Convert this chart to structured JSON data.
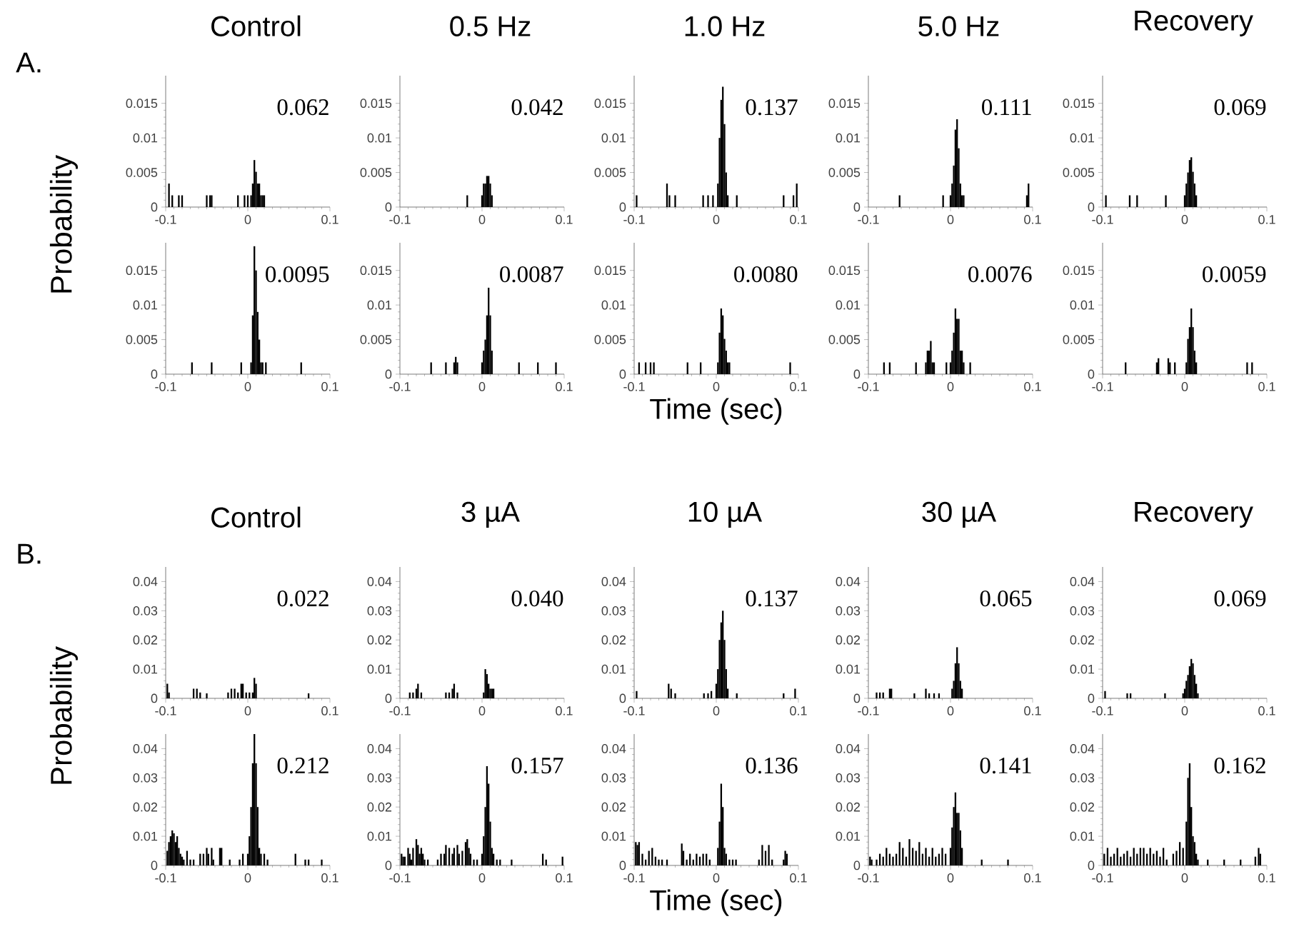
{
  "chart_data": [
    {
      "type": "bar",
      "title": "Control",
      "ylabel": "Probability",
      "annotations": [
        "A.",
        "0.062"
      ],
      "color": "#000000",
      "xlim": [
        -0.1,
        0.1
      ],
      "ylim": [
        0,
        0.019
      ],
      "xticks": [
        -0.1,
        0,
        0.1
      ],
      "yticks": [
        0,
        0.005,
        0.01,
        0.015
      ],
      "x": [
        -0.096,
        -0.092,
        -0.084,
        -0.08,
        -0.05,
        -0.046,
        -0.044,
        -0.012,
        -0.004,
        0,
        0.004,
        0.006,
        0.008,
        0.01,
        0.012,
        0.014,
        0.016,
        0.018,
        0.02
      ],
      "values": [
        0.0034,
        0.0017,
        0.0017,
        0.0017,
        0.0017,
        0.0017,
        0.0017,
        0.0017,
        0.0017,
        0.0017,
        0.0017,
        0.0034,
        0.0068,
        0.0051,
        0.0034,
        0.0034,
        0.0017,
        0.0017,
        0.0017
      ]
    },
    {
      "type": "bar",
      "title": "0.5 Hz",
      "annotations": [
        "0.042"
      ],
      "color": "#000000",
      "xlim": [
        -0.1,
        0.1
      ],
      "ylim": [
        0,
        0.019
      ],
      "xticks": [
        -0.1,
        0,
        0.1
      ],
      "yticks": [
        0,
        0.005,
        0.01,
        0.015
      ],
      "x": [
        -0.018,
        0,
        0.002,
        0.004,
        0.006,
        0.008,
        0.01,
        0.012
      ],
      "values": [
        0.0017,
        0.0017,
        0.0034,
        0.0034,
        0.0045,
        0.0045,
        0.0034,
        0.0017
      ]
    },
    {
      "type": "bar",
      "title": "1.0 Hz",
      "annotations": [
        "0.137"
      ],
      "color": "#000000",
      "xlim": [
        -0.1,
        0.1
      ],
      "ylim": [
        0,
        0.019
      ],
      "xticks": [
        -0.1,
        0,
        0.1
      ],
      "yticks": [
        0,
        0.005,
        0.01,
        0.015
      ],
      "x": [
        -0.097,
        -0.06,
        -0.057,
        -0.05,
        -0.016,
        -0.01,
        -0.004,
        0.002,
        0.004,
        0.006,
        0.008,
        0.01,
        0.012,
        0.014,
        0.025,
        0.082,
        0.094,
        0.098
      ],
      "values": [
        0.0017,
        0.0034,
        0.0017,
        0.0017,
        0.0017,
        0.0017,
        0.0017,
        0.0034,
        0.01,
        0.0155,
        0.0174,
        0.012,
        0.005,
        0.0017,
        0.0017,
        0.0017,
        0.0017,
        0.0034
      ]
    },
    {
      "type": "bar",
      "title": "5.0 Hz",
      "annotations": [
        "0.111"
      ],
      "color": "#000000",
      "xlim": [
        -0.1,
        0.1
      ],
      "ylim": [
        0,
        0.019
      ],
      "xticks": [
        -0.1,
        0,
        0.1
      ],
      "yticks": [
        0,
        0.005,
        0.01,
        0.015
      ],
      "x": [
        -0.062,
        -0.009,
        0,
        0.002,
        0.004,
        0.006,
        0.008,
        0.01,
        0.012,
        0.014,
        0.016,
        0.093,
        0.095
      ],
      "values": [
        0.0017,
        0.0017,
        0.0017,
        0.0034,
        0.006,
        0.0112,
        0.0127,
        0.0085,
        0.0034,
        0.0017,
        0.0017,
        0.0017,
        0.0034
      ]
    },
    {
      "type": "bar",
      "title": "Recovery",
      "annotations": [
        "0.069"
      ],
      "color": "#000000",
      "xlim": [
        -0.1,
        0.1
      ],
      "ylim": [
        0,
        0.019
      ],
      "xticks": [
        -0.1,
        0,
        0.1
      ],
      "yticks": [
        0,
        0.005,
        0.01,
        0.015
      ],
      "x": [
        -0.096,
        -0.067,
        -0.058,
        -0.023,
        0,
        0.002,
        0.004,
        0.006,
        0.008,
        0.01,
        0.012,
        0.014
      ],
      "values": [
        0.0017,
        0.0017,
        0.0017,
        0.0017,
        0.0017,
        0.0034,
        0.005,
        0.0068,
        0.0072,
        0.0051,
        0.0034,
        0.0017
      ]
    },
    {
      "type": "bar",
      "annotations": [
        "0.0095"
      ],
      "color": "#000000",
      "xlim": [
        -0.1,
        0.1
      ],
      "ylim": [
        0,
        0.019
      ],
      "xticks": [
        -0.1,
        0,
        0.1
      ],
      "yticks": [
        0,
        0.005,
        0.01,
        0.015
      ],
      "x": [
        -0.068,
        -0.044,
        -0.008,
        0.004,
        0.006,
        0.008,
        0.01,
        0.012,
        0.014,
        0.016,
        0.018,
        0.022,
        0.065
      ],
      "values": [
        0.0017,
        0.0017,
        0.0017,
        0.0017,
        0.0085,
        0.0185,
        0.015,
        0.009,
        0.005,
        0.0017,
        0.0017,
        0.0017,
        0.0017
      ]
    },
    {
      "type": "bar",
      "annotations": [
        "0.0087"
      ],
      "color": "#000000",
      "xlim": [
        -0.1,
        0.1
      ],
      "ylim": [
        0,
        0.019
      ],
      "xticks": [
        -0.1,
        0,
        0.1
      ],
      "yticks": [
        0,
        0.005,
        0.01,
        0.015
      ],
      "x": [
        -0.062,
        -0.044,
        -0.034,
        -0.032,
        -0.03,
        0,
        0.002,
        0.004,
        0.006,
        0.008,
        0.01,
        0.012,
        0.045,
        0.068,
        0.09
      ],
      "values": [
        0.0017,
        0.0017,
        0.0017,
        0.0025,
        0.0017,
        0.0017,
        0.0034,
        0.005,
        0.0085,
        0.0125,
        0.0085,
        0.0034,
        0.0017,
        0.0017,
        0.0017
      ]
    },
    {
      "type": "bar",
      "xlabel": "Time (sec)",
      "annotations": [
        "0.0080"
      ],
      "color": "#000000",
      "xlim": [
        -0.1,
        0.1
      ],
      "ylim": [
        0,
        0.019
      ],
      "xticks": [
        -0.1,
        0,
        0.1
      ],
      "yticks": [
        0,
        0.005,
        0.01,
        0.015
      ],
      "x": [
        -0.094,
        -0.086,
        -0.08,
        -0.076,
        -0.035,
        -0.019,
        0.002,
        0.004,
        0.006,
        0.008,
        0.01,
        0.012,
        0.014,
        0.016,
        0.09
      ],
      "values": [
        0.0017,
        0.0017,
        0.0017,
        0.0017,
        0.0017,
        0.0017,
        0.0017,
        0.006,
        0.0095,
        0.0085,
        0.0051,
        0.0034,
        0.0017,
        0.0017,
        0.0017
      ]
    },
    {
      "type": "bar",
      "annotations": [
        "0.0076"
      ],
      "color": "#000000",
      "xlim": [
        -0.1,
        0.1
      ],
      "ylim": [
        0,
        0.019
      ],
      "xticks": [
        -0.1,
        0,
        0.1
      ],
      "yticks": [
        0,
        0.005,
        0.01,
        0.015
      ],
      "x": [
        -0.081,
        -0.074,
        -0.042,
        -0.03,
        -0.028,
        -0.026,
        -0.024,
        -0.022,
        -0.02,
        -0.005,
        0,
        0.002,
        0.004,
        0.006,
        0.008,
        0.01,
        0.012,
        0.014,
        0.016,
        0.024
      ],
      "values": [
        0.0017,
        0.0017,
        0.0017,
        0.0017,
        0.0034,
        0.0034,
        0.0048,
        0.0017,
        0.0017,
        0.0017,
        0.0017,
        0.0034,
        0.006,
        0.0095,
        0.008,
        0.008,
        0.0034,
        0.0034,
        0.0017,
        0.0017
      ]
    },
    {
      "type": "bar",
      "annotations": [
        "0.0059"
      ],
      "color": "#000000",
      "xlim": [
        -0.1,
        0.1
      ],
      "ylim": [
        0,
        0.019
      ],
      "xticks": [
        -0.1,
        0,
        0.1
      ],
      "yticks": [
        0,
        0.005,
        0.01,
        0.015
      ],
      "x": [
        -0.072,
        -0.034,
        -0.032,
        -0.02,
        -0.018,
        -0.012,
        0.002,
        0.004,
        0.006,
        0.008,
        0.01,
        0.012,
        0.014,
        0.076,
        0.082
      ],
      "values": [
        0.0017,
        0.0017,
        0.0023,
        0.0023,
        0.0017,
        0.0017,
        0.0017,
        0.0051,
        0.0068,
        0.0095,
        0.0068,
        0.0034,
        0.0017,
        0.0017,
        0.0017
      ]
    },
    {
      "type": "bar",
      "title": "Control",
      "ylabel": "Probability",
      "annotations": [
        "B.",
        "0.022"
      ],
      "color": "#000000",
      "xlim": [
        -0.1,
        0.1
      ],
      "ylim": [
        0,
        0.045
      ],
      "xticks": [
        -0.1,
        0,
        0.1
      ],
      "yticks": [
        0,
        0.01,
        0.02,
        0.03,
        0.04
      ],
      "x": [
        -0.098,
        -0.096,
        -0.066,
        -0.062,
        -0.058,
        -0.05,
        -0.024,
        -0.02,
        -0.016,
        -0.012,
        -0.008,
        -0.006,
        -0.002,
        0.002,
        0.006,
        0.008,
        0.01,
        0.074
      ],
      "values": [
        0.005,
        0.002,
        0.0033,
        0.0033,
        0.002,
        0.0017,
        0.002,
        0.0033,
        0.0033,
        0.002,
        0.005,
        0.005,
        0.002,
        0.002,
        0.002,
        0.007,
        0.005,
        0.0017
      ]
    },
    {
      "type": "bar",
      "title": "3 µA",
      "annotations": [
        "0.040"
      ],
      "color": "#000000",
      "xlim": [
        -0.1,
        0.1
      ],
      "ylim": [
        0,
        0.045
      ],
      "xticks": [
        -0.1,
        0,
        0.1
      ],
      "yticks": [
        0,
        0.01,
        0.02,
        0.03,
        0.04
      ],
      "x": [
        -0.088,
        -0.084,
        -0.08,
        -0.078,
        -0.074,
        -0.044,
        -0.04,
        -0.036,
        -0.034,
        -0.03,
        0.002,
        0.004,
        0.006,
        0.008,
        0.01,
        0.012,
        0.014
      ],
      "values": [
        0.002,
        0.002,
        0.0033,
        0.005,
        0.002,
        0.002,
        0.002,
        0.0033,
        0.005,
        0.002,
        0.002,
        0.01,
        0.0083,
        0.005,
        0.0033,
        0.0033,
        0.0033
      ]
    },
    {
      "type": "bar",
      "title": "10 µA",
      "annotations": [
        "0.137"
      ],
      "color": "#000000",
      "xlim": [
        -0.1,
        0.1
      ],
      "ylim": [
        0,
        0.045
      ],
      "xticks": [
        -0.1,
        0,
        0.1
      ],
      "yticks": [
        0,
        0.01,
        0.02,
        0.03,
        0.04
      ],
      "x": [
        -0.097,
        -0.058,
        -0.055,
        -0.05,
        -0.015,
        -0.01,
        -0.006,
        0,
        0.002,
        0.004,
        0.006,
        0.008,
        0.01,
        0.012,
        0.014,
        0.025,
        0.082,
        0.096
      ],
      "values": [
        0.0025,
        0.005,
        0.0033,
        0.0017,
        0.0017,
        0.0017,
        0.0025,
        0.005,
        0.01,
        0.02,
        0.026,
        0.03,
        0.02,
        0.01,
        0.0033,
        0.0017,
        0.0017,
        0.0033
      ]
    },
    {
      "type": "bar",
      "title": "30 µA",
      "annotations": [
        "0.065"
      ],
      "color": "#000000",
      "xlim": [
        -0.1,
        0.1
      ],
      "ylim": [
        0,
        0.045
      ],
      "xticks": [
        -0.1,
        0,
        0.1
      ],
      "yticks": [
        0,
        0.01,
        0.02,
        0.03,
        0.04
      ],
      "x": [
        -0.09,
        -0.086,
        -0.082,
        -0.074,
        -0.072,
        -0.044,
        -0.03,
        -0.026,
        -0.02,
        -0.014,
        0.002,
        0.004,
        0.006,
        0.008,
        0.01,
        0.012,
        0.014
      ],
      "values": [
        0.002,
        0.002,
        0.002,
        0.0033,
        0.0033,
        0.0017,
        0.0033,
        0.0017,
        0.0017,
        0.0017,
        0.0033,
        0.006,
        0.012,
        0.0175,
        0.012,
        0.006,
        0.0033
      ]
    },
    {
      "type": "bar",
      "title": "Recovery",
      "annotations": [
        "0.069"
      ],
      "color": "#000000",
      "xlim": [
        -0.1,
        0.1
      ],
      "ylim": [
        0,
        0.045
      ],
      "xticks": [
        -0.1,
        0,
        0.1
      ],
      "yticks": [
        0,
        0.01,
        0.02,
        0.03,
        0.04
      ],
      "x": [
        -0.097,
        -0.07,
        -0.066,
        -0.024,
        -0.002,
        0,
        0.002,
        0.004,
        0.006,
        0.008,
        0.01,
        0.012,
        0.014,
        0.016
      ],
      "values": [
        0.0025,
        0.0017,
        0.0017,
        0.0017,
        0.0017,
        0.0033,
        0.006,
        0.008,
        0.011,
        0.0135,
        0.012,
        0.008,
        0.005,
        0.0017
      ]
    },
    {
      "type": "bar",
      "annotations": [
        "0.212"
      ],
      "color": "#000000",
      "xlim": [
        -0.1,
        0.1
      ],
      "ylim": [
        0,
        0.045
      ],
      "xticks": [
        -0.1,
        0,
        0.1
      ],
      "yticks": [
        0,
        0.01,
        0.02,
        0.03,
        0.04
      ],
      "x": [
        -0.098,
        -0.096,
        -0.094,
        -0.092,
        -0.09,
        -0.088,
        -0.086,
        -0.084,
        -0.082,
        -0.08,
        -0.078,
        -0.074,
        -0.07,
        -0.066,
        -0.058,
        -0.054,
        -0.05,
        -0.048,
        -0.044,
        -0.042,
        -0.034,
        -0.032,
        -0.022,
        -0.01,
        -0.006,
        0,
        0.002,
        0.004,
        0.006,
        0.008,
        0.01,
        0.012,
        0.014,
        0.016,
        0.02,
        0.024,
        0.058,
        0.07,
        0.074,
        0.09
      ],
      "values": [
        0.005,
        0.008,
        0.01,
        0.012,
        0.011,
        0.008,
        0.01,
        0.006,
        0.004,
        0.003,
        0.002,
        0.005,
        0.002,
        0.002,
        0.004,
        0.004,
        0.006,
        0.004,
        0.006,
        0.002,
        0.006,
        0.006,
        0.002,
        0.002,
        0.004,
        0.004,
        0.01,
        0.02,
        0.035,
        0.045,
        0.035,
        0.02,
        0.006,
        0.004,
        0.004,
        0.002,
        0.004,
        0.002,
        0.002,
        0.002
      ]
    },
    {
      "type": "bar",
      "annotations": [
        "0.157"
      ],
      "color": "#000000",
      "xlim": [
        -0.1,
        0.1
      ],
      "ylim": [
        0,
        0.045
      ],
      "xticks": [
        -0.1,
        0,
        0.1
      ],
      "yticks": [
        0,
        0.01,
        0.02,
        0.03,
        0.04
      ],
      "x": [
        -0.098,
        -0.096,
        -0.094,
        -0.09,
        -0.088,
        -0.086,
        -0.084,
        -0.08,
        -0.078,
        -0.076,
        -0.074,
        -0.072,
        -0.07,
        -0.066,
        -0.054,
        -0.05,
        -0.046,
        -0.044,
        -0.04,
        -0.036,
        -0.034,
        -0.03,
        -0.028,
        -0.024,
        -0.02,
        -0.018,
        -0.016,
        -0.014,
        -0.01,
        -0.006,
        0,
        0.002,
        0.004,
        0.006,
        0.008,
        0.01,
        0.012,
        0.014,
        0.018,
        0.022,
        0.036,
        0.074,
        0.078,
        0.098
      ],
      "values": [
        0.004,
        0.003,
        0.003,
        0.006,
        0.004,
        0.002,
        0.006,
        0.009,
        0.007,
        0.004,
        0.006,
        0.004,
        0.002,
        0.002,
        0.002,
        0.004,
        0.004,
        0.007,
        0.006,
        0.004,
        0.006,
        0.007,
        0.004,
        0.005,
        0.008,
        0.009,
        0.006,
        0.004,
        0.002,
        0.002,
        0.004,
        0.01,
        0.02,
        0.034,
        0.028,
        0.015,
        0.006,
        0.004,
        0.002,
        0.002,
        0.002,
        0.004,
        0.002,
        0.003
      ]
    },
    {
      "type": "bar",
      "xlabel": "Time (sec)",
      "annotations": [
        "0.136"
      ],
      "color": "#000000",
      "xlim": [
        -0.1,
        0.1
      ],
      "ylim": [
        0,
        0.045
      ],
      "xticks": [
        -0.1,
        0,
        0.1
      ],
      "yticks": [
        0,
        0.01,
        0.02,
        0.03,
        0.04
      ],
      "x": [
        -0.098,
        -0.096,
        -0.094,
        -0.09,
        -0.086,
        -0.082,
        -0.078,
        -0.074,
        -0.07,
        -0.066,
        -0.06,
        -0.042,
        -0.04,
        -0.036,
        -0.032,
        -0.028,
        -0.024,
        -0.02,
        -0.016,
        -0.012,
        -0.008,
        0.002,
        0.004,
        0.006,
        0.008,
        0.01,
        0.012,
        0.016,
        0.02,
        0.024,
        0.052,
        0.056,
        0.06,
        0.064,
        0.068,
        0.082,
        0.084,
        0.086
      ],
      "values": [
        0.008,
        0.007,
        0.008,
        0.004,
        0.002,
        0.005,
        0.006,
        0.003,
        0.002,
        0.002,
        0.002,
        0.0075,
        0.005,
        0.002,
        0.004,
        0.002,
        0.004,
        0.003,
        0.004,
        0.004,
        0.002,
        0.006,
        0.015,
        0.028,
        0.02,
        0.006,
        0.004,
        0.002,
        0.002,
        0.002,
        0.002,
        0.007,
        0.005,
        0.007,
        0.002,
        0.002,
        0.005,
        0.004
      ]
    },
    {
      "type": "bar",
      "annotations": [
        "0.141"
      ],
      "color": "#000000",
      "xlim": [
        -0.1,
        0.1
      ],
      "ylim": [
        0,
        0.045
      ],
      "xticks": [
        -0.1,
        0,
        0.1
      ],
      "yticks": [
        0,
        0.01,
        0.02,
        0.03,
        0.04
      ],
      "x": [
        -0.098,
        -0.096,
        -0.09,
        -0.086,
        -0.082,
        -0.078,
        -0.074,
        -0.07,
        -0.066,
        -0.062,
        -0.058,
        -0.054,
        -0.05,
        -0.046,
        -0.042,
        -0.038,
        -0.034,
        -0.03,
        -0.026,
        -0.022,
        -0.018,
        -0.014,
        -0.01,
        -0.006,
        0,
        0.002,
        0.004,
        0.006,
        0.008,
        0.01,
        0.012,
        0.014,
        0.038,
        0.07
      ],
      "values": [
        0.003,
        0.002,
        0.002,
        0.004,
        0.003,
        0.006,
        0.004,
        0.003,
        0.004,
        0.008,
        0.006,
        0.003,
        0.009,
        0.006,
        0.005,
        0.008,
        0.004,
        0.006,
        0.003,
        0.006,
        0.003,
        0.004,
        0.006,
        0.004,
        0.006,
        0.013,
        0.02,
        0.025,
        0.018,
        0.018,
        0.012,
        0.006,
        0.002,
        0.002
      ]
    },
    {
      "type": "bar",
      "annotations": [
        "0.162"
      ],
      "color": "#000000",
      "xlim": [
        -0.1,
        0.1
      ],
      "ylim": [
        0,
        0.045
      ],
      "xticks": [
        -0.1,
        0,
        0.1
      ],
      "yticks": [
        0,
        0.01,
        0.02,
        0.03,
        0.04
      ],
      "x": [
        -0.098,
        -0.094,
        -0.09,
        -0.086,
        -0.082,
        -0.078,
        -0.074,
        -0.07,
        -0.066,
        -0.062,
        -0.058,
        -0.054,
        -0.05,
        -0.046,
        -0.042,
        -0.038,
        -0.034,
        -0.03,
        -0.026,
        -0.022,
        -0.014,
        -0.01,
        -0.006,
        -0.002,
        0.002,
        0.004,
        0.006,
        0.008,
        0.01,
        0.012,
        0.014,
        0.016,
        0.028,
        0.048,
        0.068,
        0.086,
        0.09,
        0.092
      ],
      "values": [
        0.004,
        0.006,
        0.003,
        0.004,
        0.006,
        0.003,
        0.004,
        0.005,
        0.003,
        0.006,
        0.004,
        0.006,
        0.006,
        0.004,
        0.006,
        0.004,
        0.005,
        0.003,
        0.006,
        0.002,
        0.004,
        0.005,
        0.008,
        0.006,
        0.015,
        0.03,
        0.035,
        0.02,
        0.01,
        0.008,
        0.004,
        0.002,
        0.002,
        0.002,
        0.002,
        0.003,
        0.006,
        0.004
      ]
    }
  ]
}
